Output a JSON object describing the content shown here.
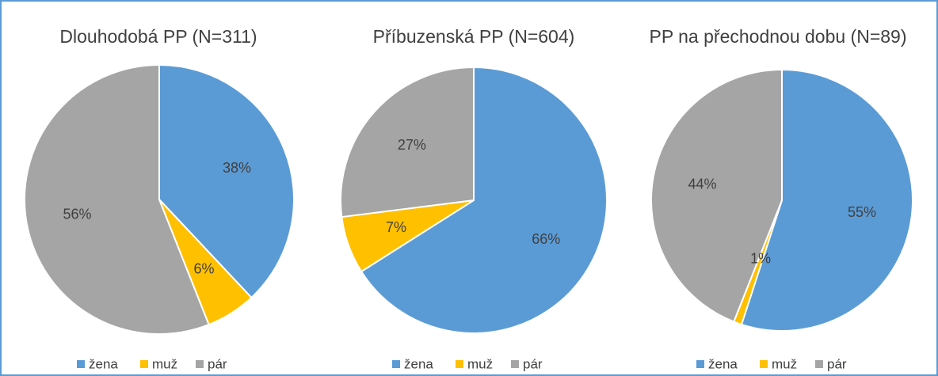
{
  "chart_data": [
    {
      "type": "pie",
      "title": "Dlouhodobá PP (N=311)",
      "categories": [
        "žena",
        "muž",
        "pár"
      ],
      "values": [
        38,
        6,
        56
      ],
      "value_labels": [
        "38%",
        "6%",
        "56%"
      ],
      "colors": [
        "#5b9bd5",
        "#ffc000",
        "#a5a5a5"
      ],
      "legend": "bottom"
    },
    {
      "type": "pie",
      "title": "Příbuzenská PP (N=604)",
      "categories": [
        "žena",
        "muž",
        "pár"
      ],
      "values": [
        66,
        7,
        27
      ],
      "value_labels": [
        "66%",
        "7%",
        "27%"
      ],
      "colors": [
        "#5b9bd5",
        "#ffc000",
        "#a5a5a5"
      ],
      "legend": "bottom"
    },
    {
      "type": "pie",
      "title": "PP na přechodnou dobu (N=89)",
      "categories": [
        "žena",
        "muž",
        "pár"
      ],
      "values": [
        55,
        1,
        44
      ],
      "value_labels": [
        "55%",
        "1%",
        "44%"
      ],
      "colors": [
        "#5b9bd5",
        "#ffc000",
        "#a5a5a5"
      ],
      "legend": "bottom"
    }
  ]
}
